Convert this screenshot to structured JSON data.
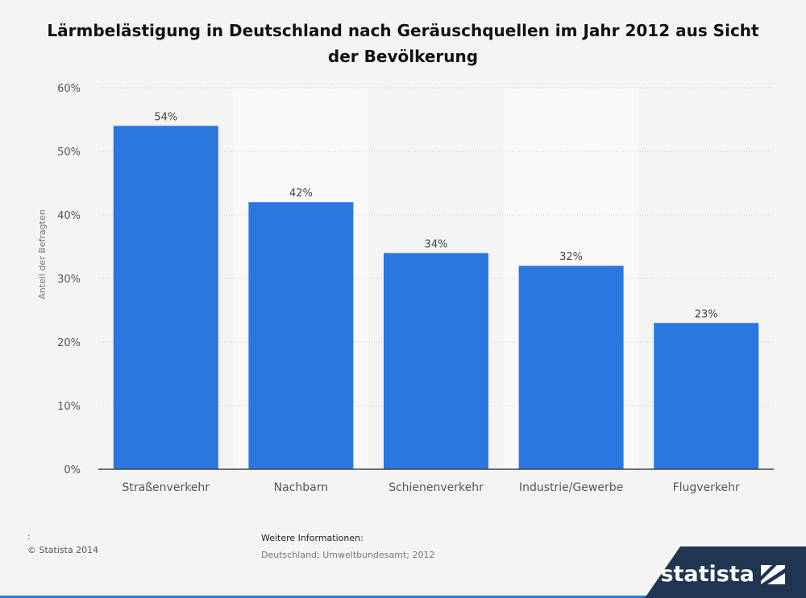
{
  "chart_data": {
    "type": "bar",
    "title": "Lärmbelästigung in Deutschland nach Geräuschquellen im Jahr 2012 aus Sicht der Bevölkerung",
    "categories": [
      "Straßenverkehr",
      "Nachbarn",
      "Schienenverkehr",
      "Industrie/Gewerbe",
      "Flugverkehr"
    ],
    "values": [
      54,
      42,
      34,
      32,
      23
    ],
    "value_labels": [
      "54%",
      "42%",
      "34%",
      "32%",
      "23%"
    ],
    "ylabel": "Anteil der Befragten",
    "xlabel": "",
    "ylim": [
      0,
      60
    ],
    "yticks": [
      0,
      10,
      20,
      30,
      40,
      50,
      60
    ],
    "ytick_labels": [
      "0%",
      "10%",
      "20%",
      "30%",
      "40%",
      "50%",
      "60%"
    ],
    "grid": true,
    "colors": {
      "bar": "#2a77e0",
      "band": "#f9f9f9",
      "grid": "#c9c9c9"
    }
  },
  "footer": {
    "colon": ":",
    "copyright": "© Statista 2014",
    "info_heading": "Weitere Informationen:",
    "info_source": "Deutschland; Umweltbundesamt; 2012"
  },
  "brand": {
    "name": "statista",
    "logo_icon": "statista-logo-icon"
  }
}
